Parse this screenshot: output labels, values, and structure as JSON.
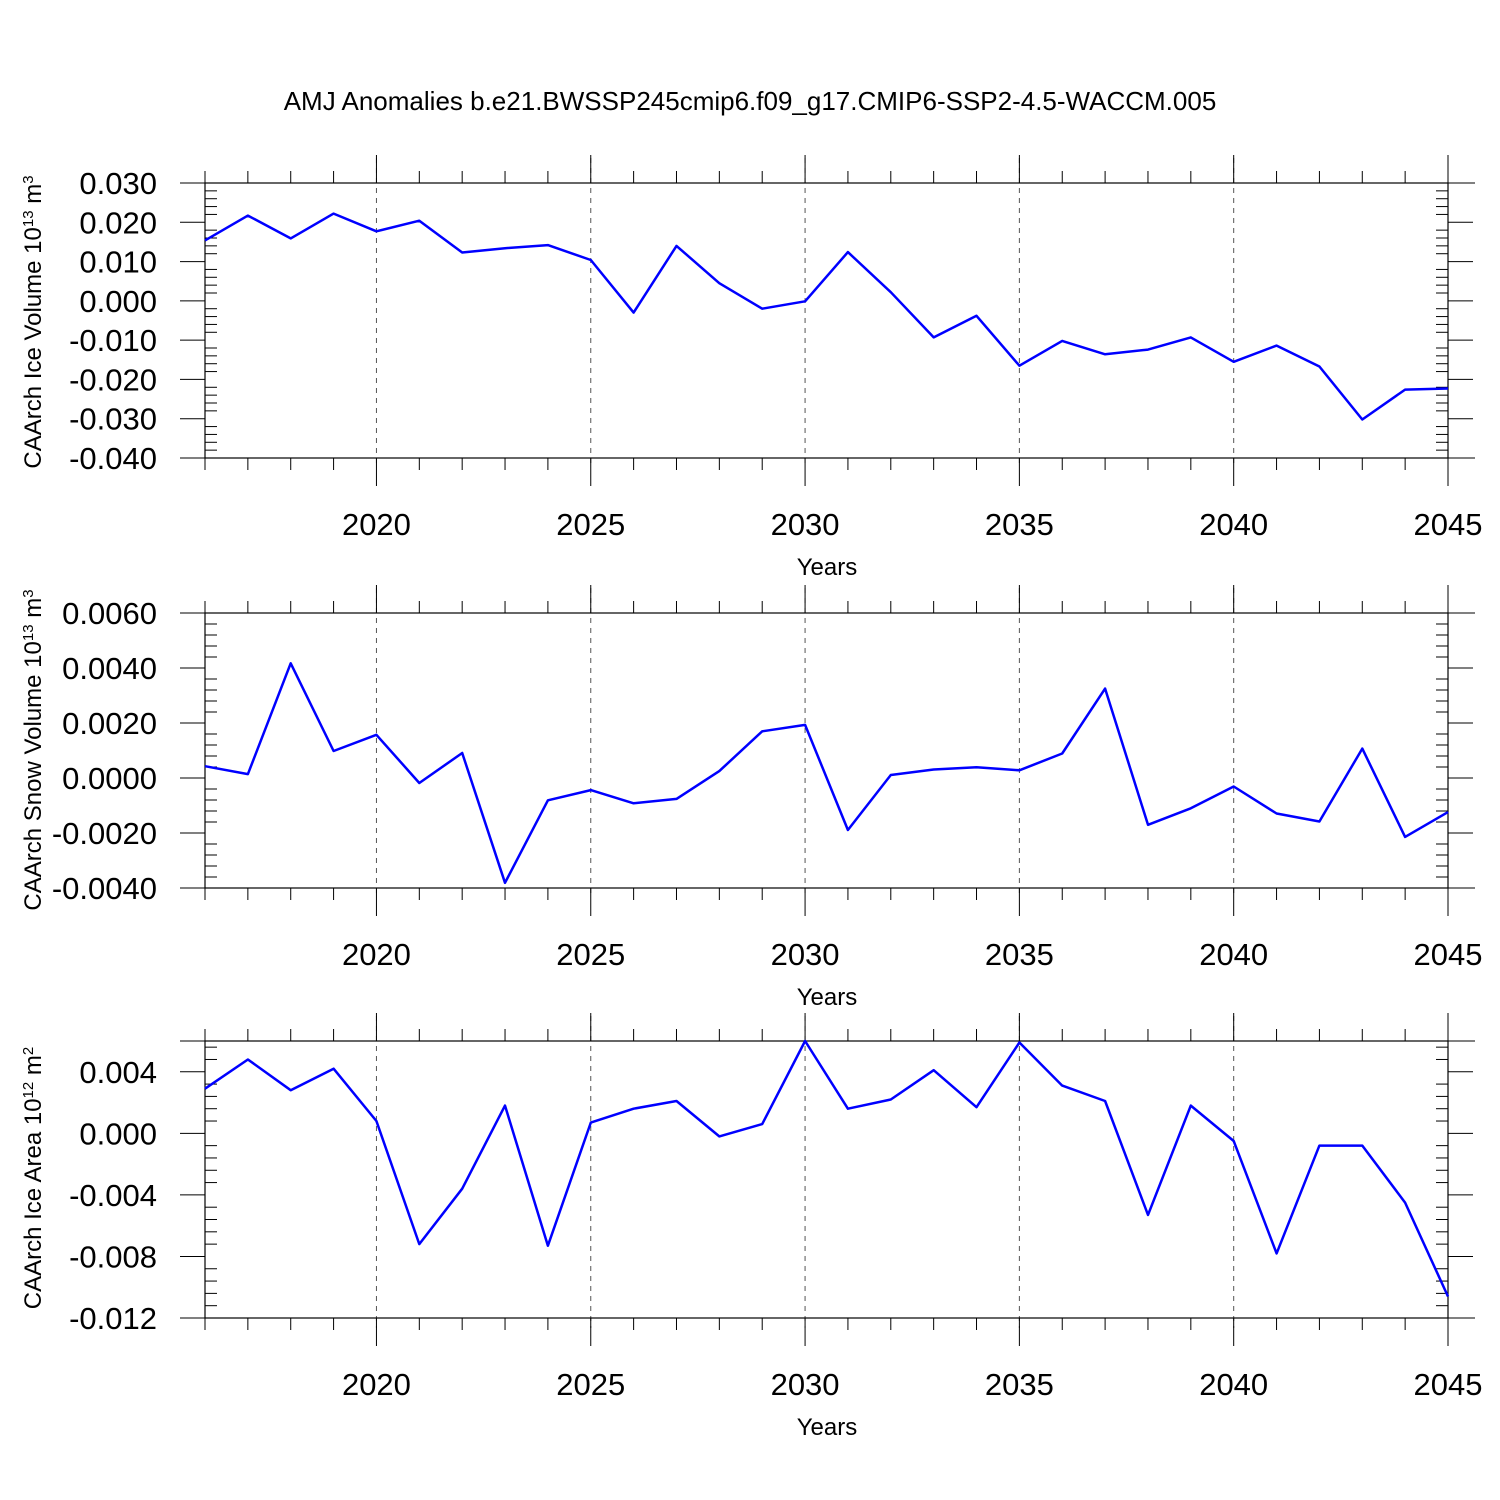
{
  "title": "AMJ Anomalies b.e21.BWSSP245cmip6.f09_g17.CMIP6-SSP2-4.5-WACCM.005",
  "line_color": "#0000ff",
  "grid_color": "#555555",
  "chart_data": [
    {
      "type": "line",
      "ylabel": "CAArch Ice Volume 10",
      "ylabel_exp": "13",
      "ylabel_unit": " m",
      "ylabel_unit_exp": "3",
      "xlabel": "Years",
      "xlim": [
        2016,
        2045
      ],
      "ylim": [
        -0.04,
        0.03
      ],
      "yticks": [
        0.03,
        0.02,
        0.01,
        0.0,
        -0.01,
        -0.02,
        -0.03,
        -0.04
      ],
      "ytick_labels": [
        "0.030",
        "0.020",
        "0.010",
        "0.000",
        "-0.010",
        "-0.020",
        "-0.030",
        "-0.040"
      ],
      "xticks": [
        2020,
        2025,
        2030,
        2035,
        2040,
        2045
      ],
      "xtick_labels": [
        "2020",
        "2025",
        "2030",
        "2035",
        "2040",
        "2045"
      ],
      "grid_x": [
        2020,
        2025,
        2030,
        2035,
        2040
      ],
      "series": [
        {
          "name": "CAArch Ice Volume",
          "x": [
            2016,
            2017,
            2018,
            2019,
            2020,
            2021,
            2022,
            2023,
            2024,
            2025,
            2026,
            2027,
            2028,
            2029,
            2030,
            2031,
            2032,
            2033,
            2034,
            2035,
            2036,
            2037,
            2038,
            2039,
            2040,
            2041,
            2042,
            2043,
            2044,
            2045
          ],
          "values": [
            0.0154,
            0.0217,
            0.0159,
            0.0222,
            0.0177,
            0.0204,
            0.0123,
            0.0134,
            0.0142,
            0.0104,
            -0.003,
            0.014,
            0.0045,
            -0.002,
            -0.0001,
            0.0124,
            0.0022,
            -0.0093,
            -0.0038,
            -0.0165,
            -0.0102,
            -0.0136,
            -0.0124,
            -0.0093,
            -0.0155,
            -0.0114,
            -0.0167,
            -0.0302,
            -0.0226,
            -0.0223
          ]
        }
      ]
    },
    {
      "type": "line",
      "ylabel": "CAArch Snow Volume 10",
      "ylabel_exp": "13",
      "ylabel_unit": " m",
      "ylabel_unit_exp": "3",
      "xlabel": "Years",
      "xlim": [
        2016,
        2045
      ],
      "ylim": [
        -0.004,
        0.006
      ],
      "yticks": [
        0.006,
        0.004,
        0.002,
        0.0,
        -0.002,
        -0.004
      ],
      "ytick_labels": [
        "0.0060",
        "0.0040",
        "0.0020",
        "0.0000",
        "-0.0020",
        "-0.0040"
      ],
      "xticks": [
        2020,
        2025,
        2030,
        2035,
        2040,
        2045
      ],
      "xtick_labels": [
        "2020",
        "2025",
        "2030",
        "2035",
        "2040",
        "2045"
      ],
      "grid_x": [
        2020,
        2025,
        2030,
        2035,
        2040
      ],
      "series": [
        {
          "name": "CAArch Snow Volume",
          "x": [
            2016,
            2017,
            2018,
            2019,
            2020,
            2021,
            2022,
            2023,
            2024,
            2025,
            2026,
            2027,
            2028,
            2029,
            2030,
            2031,
            2032,
            2033,
            2034,
            2035,
            2036,
            2037,
            2038,
            2039,
            2040,
            2041,
            2042,
            2043,
            2044,
            2045
          ],
          "values": [
            0.00043,
            0.00014,
            0.00417,
            0.00098,
            0.00157,
            -0.00018,
            0.00091,
            -0.00381,
            -0.00081,
            -0.00044,
            -0.00092,
            -0.00076,
            0.00025,
            0.0017,
            0.00193,
            -0.00189,
            0.00011,
            0.00031,
            0.00039,
            0.00028,
            0.00089,
            0.00325,
            -0.0017,
            -0.0011,
            -0.00031,
            -0.00129,
            -0.00158,
            0.00107,
            -0.00214,
            -0.00124
          ]
        }
      ]
    },
    {
      "type": "line",
      "ylabel": "CAArch Ice Area 10",
      "ylabel_exp": "12",
      "ylabel_unit": " m",
      "ylabel_unit_exp": "2",
      "xlabel": "Years",
      "xlim": [
        2016,
        2045
      ],
      "ylim": [
        -0.012,
        0.006
      ],
      "yticks": [
        0.004,
        0.0,
        -0.004,
        -0.008,
        -0.012
      ],
      "ytick_labels": [
        "0.004",
        "0.000",
        "-0.004",
        "-0.008",
        "-0.012"
      ],
      "xticks": [
        2020,
        2025,
        2030,
        2035,
        2040,
        2045
      ],
      "xtick_labels": [
        "2020",
        "2025",
        "2030",
        "2035",
        "2040",
        "2045"
      ],
      "grid_x": [
        2020,
        2025,
        2030,
        2035,
        2040
      ],
      "series": [
        {
          "name": "CAArch Ice Area",
          "x": [
            2016,
            2017,
            2018,
            2019,
            2020,
            2021,
            2022,
            2023,
            2024,
            2025,
            2026,
            2027,
            2028,
            2029,
            2030,
            2031,
            2032,
            2033,
            2034,
            2035,
            2036,
            2037,
            2038,
            2039,
            2040,
            2041,
            2042,
            2043,
            2044,
            2045
          ],
          "values": [
            0.0029,
            0.0048,
            0.0028,
            0.0042,
            0.0008,
            -0.0072,
            -0.0036,
            0.0018,
            -0.0073,
            0.0007,
            0.0016,
            0.0021,
            -0.0002,
            0.0006,
            0.006,
            0.0016,
            0.0022,
            0.0041,
            0.0017,
            0.0059,
            0.0031,
            0.0021,
            -0.0053,
            0.0018,
            -0.0005,
            -0.0078,
            -0.0008,
            -0.0008,
            -0.0045,
            -0.0106
          ]
        }
      ]
    }
  ]
}
